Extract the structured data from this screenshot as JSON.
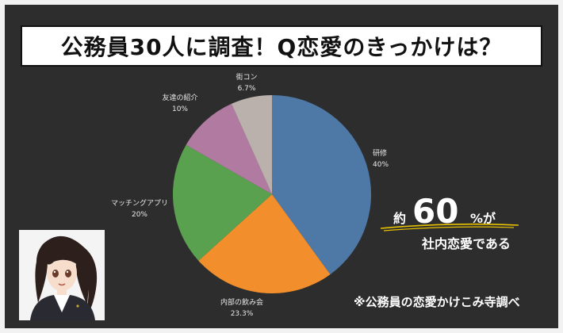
{
  "title": "公務員30人に調査！Q恋愛のきっかけは？",
  "chart_data": {
    "type": "pie",
    "title": "公務員30人に調査！Q恋愛のきっかけは？",
    "slices": [
      {
        "label": "研修",
        "value": 40,
        "display": "40%",
        "color": "#4e79a7"
      },
      {
        "label": "内部の飲み会",
        "value": 23.3,
        "display": "23.3%",
        "color": "#f28e2b"
      },
      {
        "label": "マッチングアプリ",
        "value": 20,
        "display": "20%",
        "color": "#59a14f"
      },
      {
        "label": "友達の紹介",
        "value": 10,
        "display": "10%",
        "color": "#b07aa1"
      },
      {
        "label": "街コン",
        "value": 6.7,
        "display": "6.7%",
        "color": "#bab0ac"
      }
    ]
  },
  "callout": {
    "prefix": "約",
    "number": "60",
    "suffix": "%が",
    "subtext": "社内恋愛である"
  },
  "source": "※公務員の恋愛かけこみ寺調べ",
  "colors": {
    "background": "#2d2d2d",
    "frame": "#f2f2f2",
    "underline": "#e8c200"
  }
}
